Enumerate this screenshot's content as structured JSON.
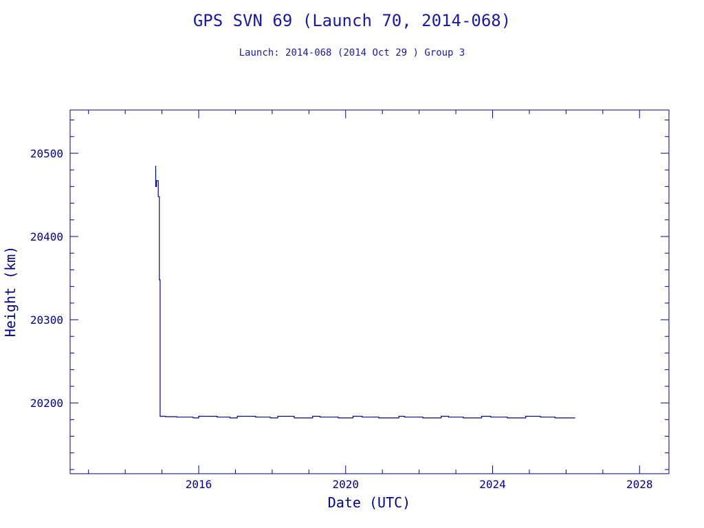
{
  "chart_data": {
    "type": "line",
    "title": "GPS SVN 69 (Launch 70, 2014-068)",
    "subtitle": "Launch: 2014-068  (2014 Oct 29 )  Group 3",
    "xlabel": "Date (UTC)",
    "ylabel": "Height (km)",
    "xlim": [
      2012.5,
      2028.8
    ],
    "ylim": [
      20115,
      20552
    ],
    "x_ticks": [
      2016,
      2020,
      2024,
      2028
    ],
    "x_tick_labels": [
      "2016",
      "2020",
      "2024",
      "2028"
    ],
    "y_ticks": [
      20200,
      20300,
      20400,
      20500
    ],
    "y_tick_labels": [
      "20200",
      "20300",
      "20400",
      "20500"
    ],
    "grid": false,
    "colors": {
      "axes": "#000080",
      "line": "#000080",
      "title": "#1a1a9a"
    },
    "series": [
      {
        "x": [
          2014.83,
          2014.83,
          2014.85,
          2014.85,
          2014.87,
          2014.87,
          2014.9,
          2014.9,
          2014.93,
          2014.93,
          2014.95,
          2014.95,
          2015.1,
          2015.1,
          2015.4,
          2015.4,
          2015.85,
          2015.85,
          2016.0,
          2016.0,
          2016.5,
          2016.5,
          2016.85,
          2016.85,
          2017.05,
          2017.05,
          2017.55,
          2017.55,
          2017.95,
          2017.95,
          2018.15,
          2018.15,
          2018.6,
          2018.6,
          2019.1,
          2019.1,
          2019.3,
          2019.3,
          2019.8,
          2019.8,
          2020.2,
          2020.2,
          2020.45,
          2020.45,
          2020.9,
          2020.9,
          2021.45,
          2021.45,
          2021.6,
          2021.6,
          2022.1,
          2022.1,
          2022.6,
          2022.6,
          2022.8,
          2022.8,
          2023.2,
          2023.2,
          2023.7,
          2023.7,
          2023.95,
          2023.95,
          2024.4,
          2024.4,
          2024.9,
          2024.9,
          2025.3,
          2025.3,
          2025.7,
          2025.7,
          2026.25
        ],
        "y": [
          20485,
          20460,
          20460,
          20467,
          20467,
          20467,
          20467,
          20448,
          20448,
          20348,
          20348,
          20184,
          20184,
          20183.5,
          20183.5,
          20183,
          20183,
          20182,
          20182,
          20184,
          20184,
          20183,
          20183,
          20182,
          20182,
          20184,
          20184,
          20183,
          20183,
          20182,
          20182,
          20184,
          20184,
          20182,
          20182,
          20184,
          20184,
          20183,
          20183,
          20182,
          20182,
          20184,
          20184,
          20183,
          20183,
          20182,
          20182,
          20184,
          20184,
          20183,
          20183,
          20182,
          20182,
          20184,
          20184,
          20183,
          20183,
          20182,
          20182,
          20184,
          20184,
          20183,
          20183,
          20182,
          20182,
          20184,
          20184,
          20183,
          20183,
          20182,
          20182
        ]
      }
    ]
  }
}
